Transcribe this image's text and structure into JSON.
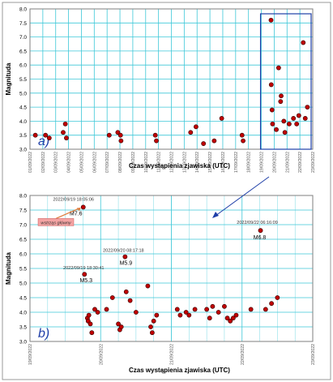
{
  "chart_data": [
    {
      "type": "scatter",
      "panel_label": "a)",
      "xlabel": "Czas wystąpienia zjawiska (UTC)",
      "ylabel": "Magnituda",
      "ylim": [
        3.0,
        8.0
      ],
      "yticks": [
        "3.0",
        "3.5",
        "4.0",
        "4.5",
        "5.0",
        "5.5",
        "6.0",
        "6.5",
        "7.0",
        "7.5",
        "8.0"
      ],
      "xlim": [
        "2022-09-01",
        "2022-09-23"
      ],
      "xticks": [
        "01/09/2022",
        "02/09/2022",
        "03/09/2022",
        "04/09/2022",
        "05/09/2022",
        "06/09/2022",
        "07/09/2022",
        "08/09/2022",
        "09/09/2022",
        "10/09/2022",
        "11/09/2022",
        "12/09/2022",
        "13/09/2022",
        "14/09/2022",
        "15/09/2022",
        "16/09/2022",
        "17/09/2022",
        "18/09/2022",
        "19/09/2022",
        "20/09/2022",
        "21/09/2022",
        "22/09/2022",
        "23/09/2022"
      ],
      "grid": true,
      "marker_color": "#c00000",
      "points": [
        {
          "x": "2022-09-01 10:00",
          "y": 3.5
        },
        {
          "x": "2022-09-02 05:00",
          "y": 3.5
        },
        {
          "x": "2022-09-02 12:00",
          "y": 3.4
        },
        {
          "x": "2022-09-03 14:00",
          "y": 3.6
        },
        {
          "x": "2022-09-03 18:00",
          "y": 3.9
        },
        {
          "x": "2022-09-03 20:00",
          "y": 3.4
        },
        {
          "x": "2022-09-07 04:00",
          "y": 3.5
        },
        {
          "x": "2022-09-07 20:00",
          "y": 3.6
        },
        {
          "x": "2022-09-08 01:00",
          "y": 3.5
        },
        {
          "x": "2022-09-08 02:00",
          "y": 3.3
        },
        {
          "x": "2022-09-10 18:00",
          "y": 3.5
        },
        {
          "x": "2022-09-10 20:00",
          "y": 3.3
        },
        {
          "x": "2022-09-13 12:00",
          "y": 3.6
        },
        {
          "x": "2022-09-13 22:00",
          "y": 3.8
        },
        {
          "x": "2022-09-14 12:00",
          "y": 3.2
        },
        {
          "x": "2022-09-15 08:00",
          "y": 3.3
        },
        {
          "x": "2022-09-15 22:00",
          "y": 4.1
        },
        {
          "x": "2022-09-17 12:00",
          "y": 3.5
        },
        {
          "x": "2022-09-17 14:00",
          "y": 3.3
        },
        {
          "x": "2022-09-19 18:05",
          "y": 7.6
        },
        {
          "x": "2022-09-19 18:30",
          "y": 5.3
        },
        {
          "x": "2022-09-19 20:00",
          "y": 4.4
        },
        {
          "x": "2022-09-19 21:00",
          "y": 3.9
        },
        {
          "x": "2022-09-20 08:17",
          "y": 5.9
        },
        {
          "x": "2022-09-20 12:00",
          "y": 4.7
        },
        {
          "x": "2022-09-20 13:00",
          "y": 4.9
        },
        {
          "x": "2022-09-20 04:00",
          "y": 3.7
        },
        {
          "x": "2022-09-20 18:00",
          "y": 4.0
        },
        {
          "x": "2022-09-20 20:00",
          "y": 3.6
        },
        {
          "x": "2022-09-21 04:00",
          "y": 3.9
        },
        {
          "x": "2022-09-21 12:00",
          "y": 4.1
        },
        {
          "x": "2022-09-21 18:00",
          "y": 3.9
        },
        {
          "x": "2022-09-21 22:00",
          "y": 4.2
        },
        {
          "x": "2022-09-22 06:16",
          "y": 6.8
        },
        {
          "x": "2022-09-22 10:00",
          "y": 4.1
        },
        {
          "x": "2022-09-22 14:00",
          "y": 4.5
        }
      ],
      "inset_highlight": [
        "2022-09-19",
        "2022-09-23"
      ]
    },
    {
      "type": "scatter",
      "panel_label": "b)",
      "xlabel": "Czas wystąpienia zjawiska (UTC)",
      "ylabel": "Magnituda",
      "ylim": [
        3.0,
        8.0
      ],
      "yticks": [
        "3.0",
        "3.5",
        "4.0",
        "4.5",
        "5.0",
        "5.5",
        "6.0",
        "6.5",
        "7.0",
        "7.5",
        "8.0"
      ],
      "xlim": [
        "2022-09-19",
        "2022-09-23"
      ],
      "xticks": [
        "19/09/2022",
        "20/09/2022",
        "21/09/2022",
        "22/09/2022",
        "23/09/2022"
      ],
      "grid": true,
      "marker_color": "#c00000",
      "points": [
        {
          "x": "2022-09-19 18:05",
          "y": 7.6
        },
        {
          "x": "2022-09-19 18:30",
          "y": 5.3
        },
        {
          "x": "2022-09-19 19:30",
          "y": 3.8
        },
        {
          "x": "2022-09-19 19:45",
          "y": 3.7
        },
        {
          "x": "2022-09-19 20:00",
          "y": 3.9
        },
        {
          "x": "2022-09-19 20:30",
          "y": 3.6
        },
        {
          "x": "2022-09-19 21:00",
          "y": 3.3
        },
        {
          "x": "2022-09-19 22:00",
          "y": 4.1
        },
        {
          "x": "2022-09-19 23:00",
          "y": 4.0
        },
        {
          "x": "2022-09-20 02:00",
          "y": 4.1
        },
        {
          "x": "2022-09-20 04:00",
          "y": 4.5
        },
        {
          "x": "2022-09-20 06:00",
          "y": 3.6
        },
        {
          "x": "2022-09-20 06:30",
          "y": 3.4
        },
        {
          "x": "2022-09-20 07:00",
          "y": 3.5
        },
        {
          "x": "2022-09-20 08:17",
          "y": 5.9
        },
        {
          "x": "2022-09-20 08:40",
          "y": 4.7
        },
        {
          "x": "2022-09-20 10:00",
          "y": 4.4
        },
        {
          "x": "2022-09-20 12:00",
          "y": 4.0
        },
        {
          "x": "2022-09-20 16:00",
          "y": 4.9
        },
        {
          "x": "2022-09-20 17:00",
          "y": 3.5
        },
        {
          "x": "2022-09-20 17:30",
          "y": 3.3
        },
        {
          "x": "2022-09-20 18:00",
          "y": 3.7
        },
        {
          "x": "2022-09-20 19:00",
          "y": 3.9
        },
        {
          "x": "2022-09-21 02:00",
          "y": 4.1
        },
        {
          "x": "2022-09-21 03:00",
          "y": 3.9
        },
        {
          "x": "2022-09-21 05:00",
          "y": 4.0
        },
        {
          "x": "2022-09-21 06:00",
          "y": 3.9
        },
        {
          "x": "2022-09-21 08:00",
          "y": 4.1
        },
        {
          "x": "2022-09-21 12:00",
          "y": 4.1
        },
        {
          "x": "2022-09-21 13:00",
          "y": 3.8
        },
        {
          "x": "2022-09-21 14:00",
          "y": 4.2
        },
        {
          "x": "2022-09-21 16:00",
          "y": 4.0
        },
        {
          "x": "2022-09-21 18:00",
          "y": 4.2
        },
        {
          "x": "2022-09-21 19:00",
          "y": 3.8
        },
        {
          "x": "2022-09-21 20:00",
          "y": 3.7
        },
        {
          "x": "2022-09-21 21:00",
          "y": 3.8
        },
        {
          "x": "2022-09-21 22:00",
          "y": 3.9
        },
        {
          "x": "2022-09-22 06:16",
          "y": 6.8
        },
        {
          "x": "2022-09-22 03:00",
          "y": 4.1
        },
        {
          "x": "2022-09-22 08:00",
          "y": 4.1
        },
        {
          "x": "2022-09-22 10:00",
          "y": 4.3
        },
        {
          "x": "2022-09-22 12:00",
          "y": 4.5
        }
      ],
      "annotations": [
        {
          "x": "2022-09-19 18:05",
          "y": 7.6,
          "time_label": "2022/09/19 18:05:06",
          "mag_label": "M7.6",
          "callout": "wstrząs główny"
        },
        {
          "x": "2022-09-20 08:17",
          "y": 5.9,
          "time_label": "2022/09/20 08:17:18",
          "mag_label": "M5.9"
        },
        {
          "x": "2022-09-19 18:30",
          "y": 5.3,
          "time_label": "2022/09/19 18:30:41",
          "mag_label": "M5.3"
        },
        {
          "x": "2022-09-22 06:16",
          "y": 6.8,
          "time_label": "2022/09/22 06:16:09",
          "mag_label": "M6.8"
        }
      ]
    }
  ],
  "colors": {
    "grid": "#3ec8d8",
    "marker": "#c00000",
    "marker_edge": "#300000",
    "highlight_box": "#1f3fa8",
    "arrow": "#1f3fa8",
    "callout_fill": "#f4a3a3",
    "callout_arrow": "#e07a3a",
    "panel_label": "#1f3fa8"
  }
}
